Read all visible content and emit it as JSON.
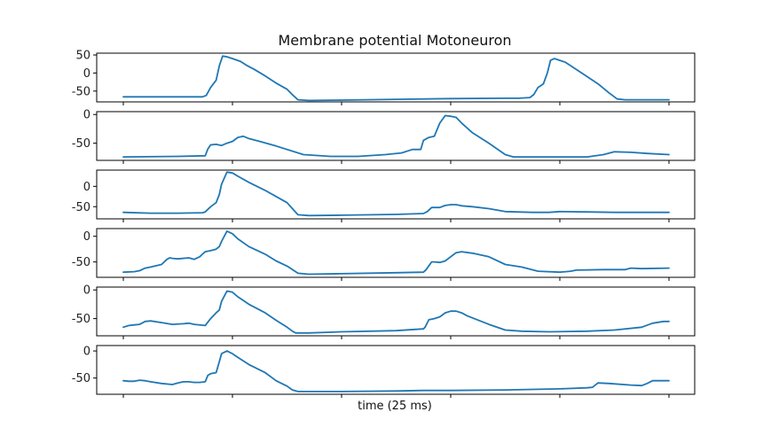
{
  "chart_data": {
    "type": "line",
    "title": "Membrane potential Motoneuron",
    "xlabel": "time (25 ms)",
    "line_color": "#1f77b4",
    "grid": false,
    "x_range": [
      0,
      100
    ],
    "panels": [
      {
        "ylim": [
          -80,
          55
        ],
        "yticks": [
          50,
          0,
          -50
        ],
        "ytick_labels": [
          "50",
          "0",
          "-50"
        ],
        "x": [
          0,
          5,
          10,
          14.5,
          15.2,
          16,
          17,
          17.6,
          18.2,
          19,
          20,
          21.5,
          22.5,
          24,
          26,
          28,
          30,
          31,
          32,
          34,
          40,
          50,
          60,
          70,
          72.5,
          74.5,
          75.2,
          76,
          77,
          77.7,
          78.3,
          79,
          81,
          84,
          87,
          89,
          90.5,
          92,
          94,
          100
        ],
        "y": [
          -66,
          -66,
          -66,
          -66,
          -62,
          -40,
          -20,
          20,
          47,
          45,
          40,
          32,
          22,
          10,
          -8,
          -28,
          -45,
          -60,
          -74,
          -76,
          -75,
          -73,
          -71,
          -70,
          -70,
          -68,
          -60,
          -40,
          -30,
          0,
          35,
          40,
          30,
          0,
          -30,
          -55,
          -72,
          -74,
          -74,
          -74
        ]
      },
      {
        "ylim": [
          -80,
          5
        ],
        "yticks": [
          0,
          -50
        ],
        "ytick_labels": [
          "0",
          "-50"
        ],
        "x": [
          0,
          10,
          15,
          15.5,
          16,
          17,
          18,
          19,
          20,
          21,
          22,
          23,
          25,
          28,
          33,
          38,
          43,
          48,
          51,
          53,
          54.5,
          55,
          56,
          57,
          58,
          59,
          60,
          61,
          62,
          64,
          67,
          70,
          71.5,
          73,
          76,
          80,
          85,
          88,
          90,
          93,
          96,
          100
        ],
        "y": [
          -74,
          -73,
          -72,
          -60,
          -53,
          -52,
          -54,
          -50,
          -47,
          -40,
          -38,
          -42,
          -47,
          -55,
          -70,
          -73,
          -73,
          -70,
          -67,
          -61,
          -61,
          -45,
          -40,
          -38,
          -15,
          -2,
          -3,
          -5,
          -15,
          -32,
          -50,
          -70,
          -74,
          -74,
          -74,
          -74,
          -74,
          -70,
          -65,
          -66,
          -68,
          -70
        ]
      },
      {
        "ylim": [
          -80,
          40
        ],
        "yticks": [
          0,
          -50
        ],
        "ytick_labels": [
          "0",
          "-50"
        ],
        "x": [
          0,
          5,
          10,
          14.5,
          15,
          16,
          17,
          17.6,
          18,
          19,
          20,
          21,
          23,
          26,
          28,
          30,
          31,
          32,
          34,
          40,
          50,
          55,
          55.7,
          56.5,
          58,
          59,
          60,
          61,
          62,
          64,
          67,
          70,
          75,
          78,
          80,
          85,
          90,
          95,
          100
        ],
        "y": [
          -64,
          -66,
          -66,
          -65,
          -63,
          -50,
          -40,
          -20,
          5,
          35,
          33,
          25,
          10,
          -10,
          -25,
          -40,
          -55,
          -70,
          -72,
          -71,
          -69,
          -67,
          -62,
          -52,
          -52,
          -47,
          -45,
          -45,
          -48,
          -50,
          -55,
          -62,
          -64,
          -64,
          -62,
          -63,
          -64,
          -64,
          -64
        ]
      },
      {
        "ylim": [
          -80,
          15
        ],
        "yticks": [
          0,
          -50
        ],
        "ytick_labels": [
          "0",
          "-50"
        ],
        "x": [
          0,
          2,
          3,
          4,
          5,
          7,
          8,
          8.5,
          9,
          10,
          12,
          13,
          14,
          14.5,
          15,
          16,
          17,
          17.6,
          18,
          19,
          20,
          21,
          23,
          26,
          28,
          30,
          31,
          32,
          34,
          40,
          50,
          55,
          55.5,
          56.5,
          57,
          58,
          59,
          60,
          61,
          62,
          64,
          67,
          70,
          73,
          76,
          80,
          82,
          83,
          88,
          92,
          93,
          95,
          100
        ],
        "y": [
          -70,
          -69,
          -67,
          -62,
          -60,
          -55,
          -45,
          -42,
          -43,
          -44,
          -42,
          -45,
          -40,
          -35,
          -30,
          -28,
          -25,
          -20,
          -10,
          10,
          5,
          -5,
          -20,
          -35,
          -48,
          -58,
          -65,
          -72,
          -74,
          -73,
          -71,
          -70,
          -65,
          -50,
          -50,
          -51,
          -48,
          -40,
          -32,
          -30,
          -33,
          -40,
          -55,
          -60,
          -68,
          -70,
          -68,
          -66,
          -65,
          -65,
          -62,
          -63,
          -62
        ]
      },
      {
        "ylim": [
          -80,
          5
        ],
        "yticks": [
          0,
          -50
        ],
        "ytick_labels": [
          "0",
          "-50"
        ],
        "x": [
          0,
          1,
          2,
          3,
          4,
          5,
          7,
          9,
          11,
          12,
          13,
          15,
          16,
          17,
          17.6,
          18,
          19,
          20,
          21,
          23,
          26,
          28,
          30,
          31,
          31.6,
          32,
          34,
          40,
          50,
          55,
          55.3,
          56,
          57,
          58,
          59,
          60,
          61,
          62,
          63,
          67,
          70,
          73,
          78,
          85,
          90,
          95,
          97,
          99,
          100
        ],
        "y": [
          -65,
          -62,
          -61,
          -60,
          -55,
          -54,
          -57,
          -60,
          -59,
          -58,
          -60,
          -62,
          -50,
          -40,
          -35,
          -20,
          -2,
          -4,
          -12,
          -25,
          -40,
          -53,
          -65,
          -72,
          -75,
          -75,
          -75,
          -73,
          -71,
          -68,
          -65,
          -52,
          -50,
          -47,
          -40,
          -37,
          -37,
          -40,
          -45,
          -60,
          -70,
          -72,
          -73,
          -72,
          -70,
          -65,
          -58,
          -55,
          -55
        ]
      },
      {
        "ylim": [
          -80,
          10
        ],
        "yticks": [
          0,
          -50
        ],
        "ytick_labels": [
          "0",
          "-50"
        ],
        "x": [
          0,
          1,
          2,
          3,
          4,
          5,
          7,
          9,
          10,
          11,
          12,
          13,
          14,
          15,
          15.5,
          16,
          17,
          17.6,
          18,
          19,
          20,
          21,
          23,
          26,
          28,
          30,
          31,
          32,
          34,
          40,
          50,
          55,
          60,
          70,
          80,
          85,
          86,
          87,
          89,
          93,
          95,
          96,
          97,
          98,
          100
        ],
        "y": [
          -55,
          -56,
          -56,
          -54,
          -55,
          -57,
          -60,
          -62,
          -59,
          -57,
          -57,
          -58,
          -58,
          -57,
          -45,
          -42,
          -40,
          -20,
          -5,
          0,
          -5,
          -12,
          -25,
          -40,
          -55,
          -65,
          -72,
          -75,
          -75,
          -75,
          -74,
          -73,
          -73,
          -72,
          -70,
          -68,
          -67,
          -59,
          -60,
          -63,
          -64,
          -60,
          -55,
          -55,
          -55
        ]
      }
    ]
  }
}
